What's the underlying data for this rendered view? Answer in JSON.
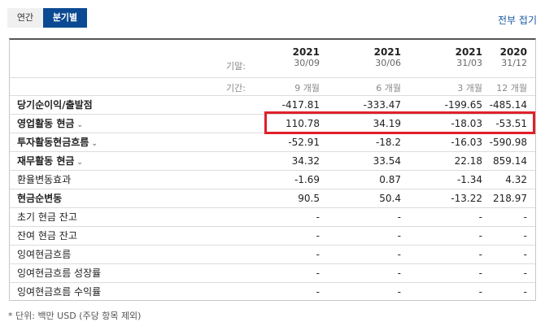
{
  "tabs": {
    "annual": "연간",
    "quarterly": "분기별"
  },
  "collapse_label": "전부 접기",
  "header": {
    "fiscal_label": "기말:",
    "period_label": "기간:",
    "columns": [
      {
        "year": "2021",
        "date": "30/09",
        "period": "9 개월"
      },
      {
        "year": "2021",
        "date": "30/06",
        "period": "6 개월"
      },
      {
        "year": "2021",
        "date": "31/03",
        "period": "3 개월"
      },
      {
        "year": "2020",
        "date": "31/12",
        "period": "12 개월"
      }
    ]
  },
  "rows": [
    {
      "label": "당기순이익/출발점",
      "values": [
        "-417.81",
        "-333.47",
        "-199.65",
        "-485.14"
      ]
    },
    {
      "label": "영업활동 현금",
      "values": [
        "110.78",
        "34.19",
        "-18.03",
        "-53.51"
      ]
    },
    {
      "label": "투자활동현금흐름",
      "values": [
        "-52.91",
        "-18.2",
        "-16.03",
        "-590.98"
      ]
    },
    {
      "label": "재무활동 현금",
      "values": [
        "34.32",
        "33.54",
        "22.18",
        "859.14"
      ]
    },
    {
      "label": "환율변동효과",
      "values": [
        "-1.69",
        "0.87",
        "-1.34",
        "4.32"
      ]
    },
    {
      "label": "현금순변동",
      "values": [
        "90.5",
        "50.4",
        "-13.22",
        "218.97"
      ]
    },
    {
      "label": "초기 현금 잔고",
      "values": [
        "-",
        "-",
        "-",
        "-"
      ]
    },
    {
      "label": "잔여 현금 잔고",
      "values": [
        "-",
        "-",
        "-",
        "-"
      ]
    },
    {
      "label": "잉여현금흐름",
      "values": [
        "-",
        "-",
        "-",
        "-"
      ]
    },
    {
      "label": "잉여현금흐름 성장률",
      "values": [
        "-",
        "-",
        "-",
        "-"
      ]
    },
    {
      "label": "잉여현금흐름 수익률",
      "values": [
        "-",
        "-",
        "-",
        "-"
      ]
    }
  ],
  "expand_icon": "chevron-down-icon",
  "highlight_color": "#e0202a",
  "accent_color": "#0b4a92",
  "footnote": "* 단위: 백만 USD (주당 항목 제외)"
}
